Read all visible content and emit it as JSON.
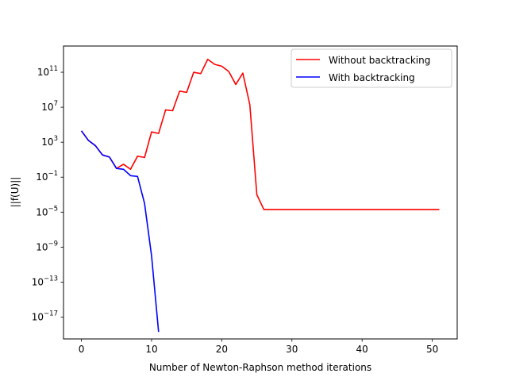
{
  "chart_data": {
    "type": "line",
    "title": "",
    "xlabel": "Number of Newton-Raphson method iterations",
    "ylabel": "||f(U)||",
    "yscale": "log",
    "xlim": [
      -2.55,
      53.55
    ],
    "ylim_exp": [
      -19.5,
      14.0
    ],
    "x_ticks": [
      0,
      10,
      20,
      30,
      40,
      50
    ],
    "x_tick_labels": [
      "0",
      "10",
      "20",
      "30",
      "40",
      "50"
    ],
    "y_ticks_exp": [
      -17,
      -13,
      -9,
      -5,
      -1,
      3,
      7,
      11
    ],
    "y_tick_labels": [
      "10",
      "10",
      "10",
      "10",
      "10",
      "10",
      "10",
      "10"
    ],
    "y_tick_superscripts": [
      "−17",
      "−13",
      "−9",
      "−5",
      "−1",
      "3",
      "7",
      "11"
    ],
    "grid": false,
    "legend_position": "upper right",
    "series": [
      {
        "name": "Without backtracking",
        "color": "#ff0000",
        "x": [
          0,
          1,
          2,
          3,
          4,
          5,
          6,
          7,
          8,
          9,
          10,
          11,
          12,
          13,
          14,
          15,
          16,
          17,
          18,
          19,
          20,
          21,
          22,
          23,
          24,
          25,
          26,
          27,
          28,
          29,
          30,
          31,
          32,
          33,
          34,
          35,
          36,
          37,
          38,
          39,
          40,
          41,
          42,
          43,
          44,
          45,
          46,
          47,
          48,
          49,
          50,
          51
        ],
        "y": [
          20000.0,
          1600.0,
          400.0,
          35.0,
          20.0,
          1.0,
          3.0,
          0.8,
          25.0,
          18.0,
          15000.0,
          10000.0,
          5000000.0,
          4000000.0,
          700000000.0,
          500000000.0,
          100000000000.0,
          70000000000.0,
          3000000000000.0,
          800000000000.0,
          500000000000.0,
          120000000000.0,
          4000000000.0,
          80000000000.0,
          20000000.0,
          0.001,
          2e-05,
          2e-05,
          2e-05,
          2e-05,
          2e-05,
          2e-05,
          2e-05,
          2e-05,
          2e-05,
          2e-05,
          2e-05,
          2e-05,
          2e-05,
          2e-05,
          2e-05,
          2e-05,
          2e-05,
          2e-05,
          2e-05,
          2e-05,
          2e-05,
          2e-05,
          2e-05,
          2e-05,
          2e-05,
          2e-05
        ]
      },
      {
        "name": "With backtracking",
        "color": "#0000ff",
        "x": [
          0,
          1,
          2,
          3,
          4,
          5,
          6,
          7,
          8,
          9,
          10,
          11
        ],
        "y": [
          20000.0,
          1600.0,
          400.0,
          35.0,
          20.0,
          1.0,
          0.8,
          0.15,
          0.12,
          0.0001,
          1e-10,
          2e-19
        ]
      }
    ]
  }
}
